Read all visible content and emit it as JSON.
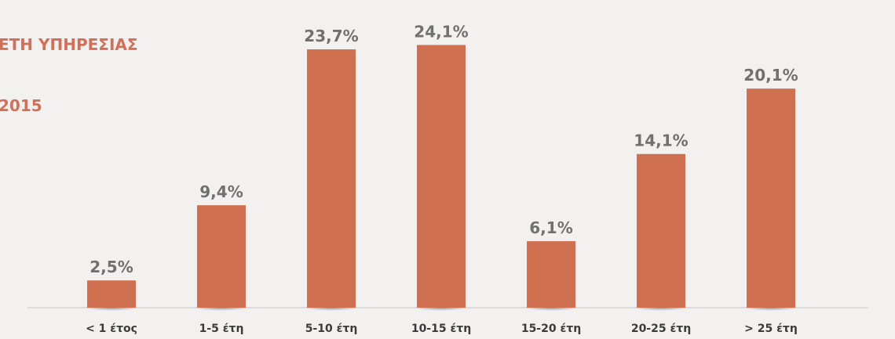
{
  "title_lines": [
    "ΕΤΗ ΥΠΗΡΕΣΙΑΣ",
    "2015"
  ],
  "colors": {
    "bar": "#cf7151",
    "title": "#d0705a",
    "value_label": "#707070",
    "category_label": "#3a3a3a",
    "axis": "#c8c8c8",
    "background": "#f2f1ef"
  },
  "chart_data": {
    "type": "bar",
    "categories": [
      "< 1 έτος",
      "1-5 έτη",
      "5-10 έτη",
      "10-15 έτη",
      "15-20 έτη",
      "20-25 έτη",
      "> 25 έτη"
    ],
    "values": [
      2.5,
      9.4,
      23.7,
      24.1,
      6.1,
      14.1,
      20.1
    ],
    "data_labels": [
      "2,5%",
      "9,4%",
      "23,7%",
      "24,1%",
      "6,1%",
      "14,1%",
      "20,1%"
    ],
    "ylim": [
      0,
      26
    ],
    "grid": false,
    "legend": "none"
  }
}
